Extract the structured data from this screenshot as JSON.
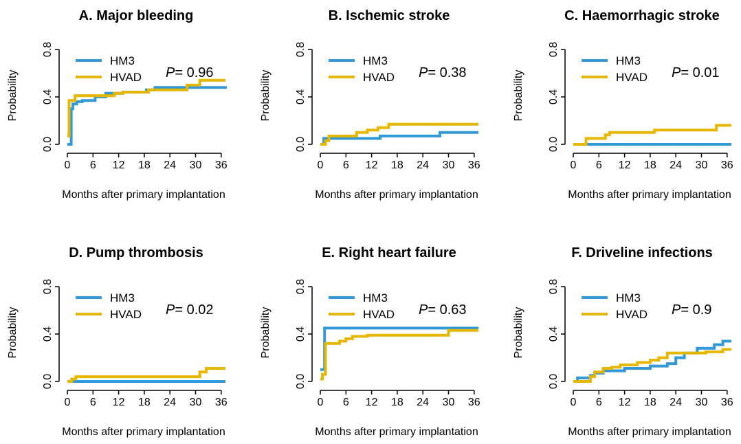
{
  "colors": {
    "HM3": "#3399d6",
    "HVAD": "#e6b700"
  },
  "shared": {
    "xlabel": "Months after primary implantation",
    "ylabel": "Probability",
    "xticks": [
      "0",
      "6",
      "12",
      "18",
      "24",
      "30",
      "36"
    ],
    "yticks": [
      "0.0",
      "0.4",
      "0.8"
    ],
    "p_prefix": "P",
    "legend": [
      "HM3",
      "HVAD"
    ]
  },
  "chart_data": [
    {
      "type": "line",
      "title": "A. Major bleeding",
      "p_text": "= 0.96",
      "xlim": [
        0,
        37
      ],
      "ylim": [
        0,
        0.8
      ],
      "legend_position": "top-left",
      "series": [
        {
          "name": "HM3",
          "steps": [
            [
              0,
              0
            ],
            [
              0.9,
              0.3
            ],
            [
              1.3,
              0.34
            ],
            [
              2.2,
              0.36
            ],
            [
              3.5,
              0.37
            ],
            [
              6.5,
              0.4
            ],
            [
              9,
              0.43
            ],
            [
              13,
              0.44
            ],
            [
              18.5,
              0.46
            ],
            [
              20.5,
              0.48
            ],
            [
              37,
              0.49
            ]
          ]
        },
        {
          "name": "HVAD",
          "steps": [
            [
              0,
              0.07
            ],
            [
              0.4,
              0.37
            ],
            [
              1.8,
              0.41
            ],
            [
              11,
              0.43
            ],
            [
              13,
              0.44
            ],
            [
              19,
              0.46
            ],
            [
              28,
              0.5
            ],
            [
              31,
              0.54
            ],
            [
              37,
              0.54
            ]
          ]
        }
      ]
    },
    {
      "type": "line",
      "title": "B. Ischemic stroke",
      "p_text": "= 0.38",
      "xlim": [
        0,
        37
      ],
      "ylim": [
        0,
        0.8
      ],
      "legend_position": "top-left",
      "series": [
        {
          "name": "HM3",
          "steps": [
            [
              0,
              0
            ],
            [
              0.8,
              0.05
            ],
            [
              14,
              0.07
            ],
            [
              28,
              0.1
            ],
            [
              37,
              0.1
            ]
          ]
        },
        {
          "name": "HVAD",
          "steps": [
            [
              0,
              0
            ],
            [
              1.2,
              0.03
            ],
            [
              2,
              0.07
            ],
            [
              8.5,
              0.1
            ],
            [
              11,
              0.12
            ],
            [
              13.5,
              0.14
            ],
            [
              16,
              0.17
            ],
            [
              37,
              0.17
            ]
          ]
        }
      ]
    },
    {
      "type": "line",
      "title": "C. Haemorrhagic stroke",
      "p_text": "= 0.01",
      "xlim": [
        0,
        37
      ],
      "ylim": [
        0,
        0.8
      ],
      "legend_position": "top-left",
      "series": [
        {
          "name": "HM3",
          "steps": [
            [
              0,
              0
            ],
            [
              37,
              0
            ]
          ]
        },
        {
          "name": "HVAD",
          "steps": [
            [
              0,
              0
            ],
            [
              3,
              0.05
            ],
            [
              7.5,
              0.08
            ],
            [
              8.5,
              0.1
            ],
            [
              19,
              0.12
            ],
            [
              33.5,
              0.16
            ],
            [
              37,
              0.16
            ]
          ]
        }
      ]
    },
    {
      "type": "line",
      "title": "D. Pump thrombosis",
      "p_text": "= 0.02",
      "xlim": [
        0,
        37
      ],
      "ylim": [
        0,
        0.8
      ],
      "legend_position": "top-left",
      "series": [
        {
          "name": "HM3",
          "steps": [
            [
              0,
              0
            ],
            [
              37,
              0
            ]
          ]
        },
        {
          "name": "HVAD",
          "steps": [
            [
              0,
              0
            ],
            [
              1,
              0.02
            ],
            [
              2,
              0.04
            ],
            [
              31,
              0.08
            ],
            [
              32.5,
              0.11
            ],
            [
              37,
              0.11
            ]
          ]
        }
      ]
    },
    {
      "type": "line",
      "title": "E. Right heart failure",
      "p_text": "= 0.63",
      "xlim": [
        0,
        37
      ],
      "ylim": [
        0,
        0.8
      ],
      "legend_position": "top-left",
      "series": [
        {
          "name": "HM3",
          "steps": [
            [
              0,
              0.1
            ],
            [
              1,
              0.45
            ],
            [
              37,
              0.45
            ]
          ]
        },
        {
          "name": "HVAD",
          "steps": [
            [
              0,
              0.02
            ],
            [
              0.5,
              0.06
            ],
            [
              1.2,
              0.32
            ],
            [
              4.5,
              0.34
            ],
            [
              6,
              0.36
            ],
            [
              7.5,
              0.38
            ],
            [
              11,
              0.39
            ],
            [
              30,
              0.43
            ],
            [
              37,
              0.43
            ]
          ]
        }
      ]
    },
    {
      "type": "line",
      "title": "F. Driveline infections",
      "p_text": "= 0.9",
      "xlim": [
        0,
        37
      ],
      "ylim": [
        0,
        0.8
      ],
      "legend_position": "top-left",
      "series": [
        {
          "name": "HM3",
          "steps": [
            [
              0,
              0
            ],
            [
              1,
              0.03
            ],
            [
              4,
              0.05
            ],
            [
              5,
              0.07
            ],
            [
              7,
              0.09
            ],
            [
              12,
              0.11
            ],
            [
              18,
              0.13
            ],
            [
              22,
              0.15
            ],
            [
              24,
              0.2
            ],
            [
              26,
              0.24
            ],
            [
              29,
              0.28
            ],
            [
              33,
              0.31
            ],
            [
              35,
              0.34
            ],
            [
              37,
              0.34
            ]
          ]
        },
        {
          "name": "HVAD",
          "steps": [
            [
              0,
              0
            ],
            [
              4,
              0.04
            ],
            [
              5,
              0.08
            ],
            [
              7,
              0.11
            ],
            [
              9,
              0.12
            ],
            [
              11,
              0.14
            ],
            [
              15,
              0.16
            ],
            [
              18,
              0.18
            ],
            [
              20,
              0.2
            ],
            [
              22,
              0.24
            ],
            [
              31,
              0.25
            ],
            [
              35,
              0.27
            ],
            [
              37,
              0.27
            ]
          ]
        }
      ]
    }
  ]
}
